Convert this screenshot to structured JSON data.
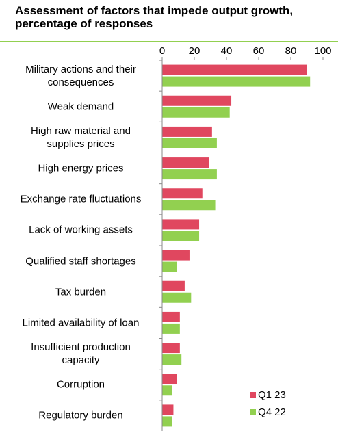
{
  "chart_data": {
    "type": "bar",
    "orientation": "horizontal",
    "title": "Assessment of factors that impede output growth, percentage of responses",
    "categories": [
      "Military actions and their consequences",
      "Weak demand",
      "High raw material and supplies prices",
      "High energy prices",
      "Exchange rate fluctuations",
      "Lack of working assets",
      "Qualified staff shortages",
      "Tax burden",
      "Limited availability of loan",
      "Insufficient production capacity",
      "Corruption",
      "Regulatory burden"
    ],
    "series": [
      {
        "name": "Q1 23",
        "color": "#e0475f",
        "values": [
          90,
          43,
          31,
          29,
          25,
          23,
          17,
          14,
          11,
          11,
          9,
          7
        ]
      },
      {
        "name": "Q4 22",
        "color": "#92d050",
        "values": [
          92,
          42,
          34,
          34,
          33,
          23,
          9,
          18,
          11,
          12,
          6,
          6
        ]
      }
    ],
    "xlim": [
      0,
      100
    ],
    "xticks": [
      0,
      20,
      40,
      60,
      80,
      100
    ],
    "legend": "lower right"
  }
}
